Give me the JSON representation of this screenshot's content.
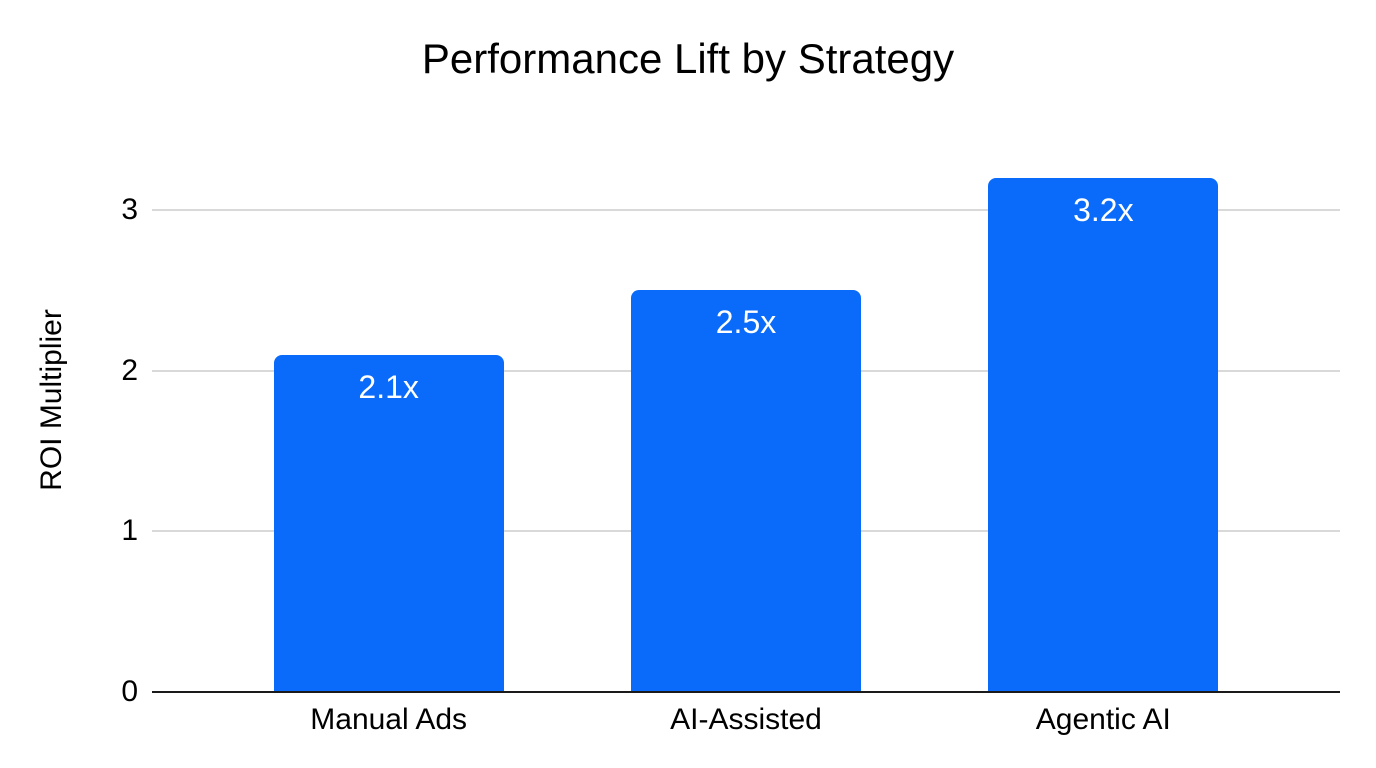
{
  "chart_data": {
    "type": "bar",
    "title": "Performance Lift by Strategy",
    "xlabel": "",
    "ylabel": "ROI Multiplier",
    "categories": [
      "Manual Ads",
      "AI-Assisted",
      "Agentic AI"
    ],
    "values": [
      2.1,
      2.5,
      3.2
    ],
    "value_labels": [
      "2.1x",
      "2.5x",
      "3.2x"
    ],
    "yticks": [
      0,
      1,
      2,
      3
    ],
    "ylim": [
      0,
      3.5
    ],
    "grid": true,
    "legend": "none",
    "colors": {
      "bar": "#0a6bfa",
      "gridline": "#d9d9d9",
      "axis_line": "#1a1a1a",
      "bar_label_text": "#ffffff",
      "text": "#000000",
      "background": "#ffffff"
    }
  }
}
